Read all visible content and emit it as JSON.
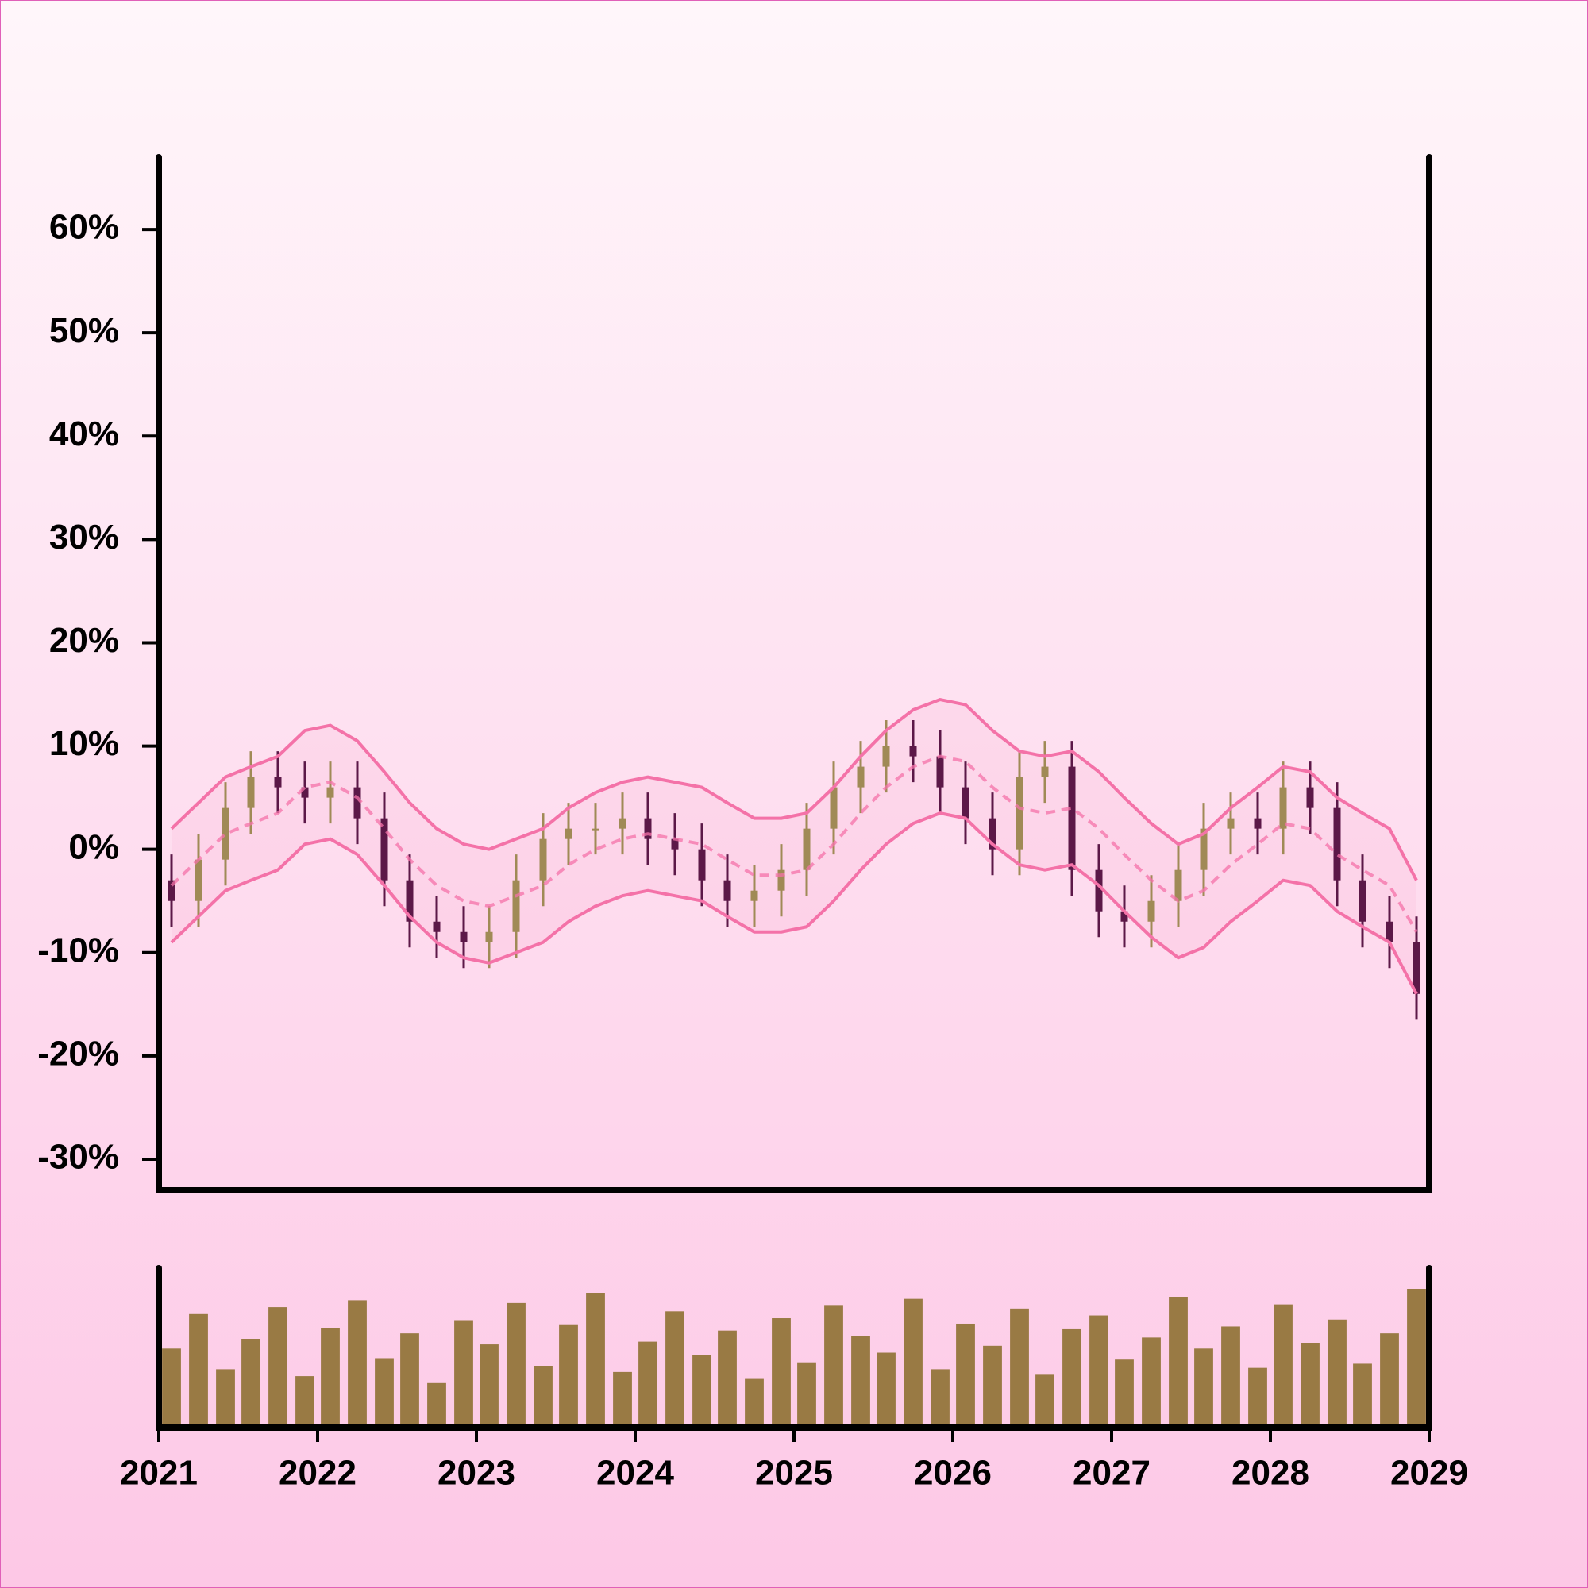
{
  "chart_data": {
    "type": "ohlc",
    "x": [
      2021.08,
      2021.25,
      2021.42,
      2021.58,
      2021.75,
      2021.92,
      2022.08,
      2022.25,
      2022.42,
      2022.58,
      2022.75,
      2022.92,
      2023.08,
      2023.25,
      2023.42,
      2023.58,
      2023.75,
      2023.92,
      2024.08,
      2024.25,
      2024.42,
      2024.58,
      2024.75,
      2024.92,
      2025.08,
      2025.25,
      2025.42,
      2025.58,
      2025.75,
      2025.92,
      2026.08,
      2026.25,
      2026.42,
      2026.58,
      2026.75,
      2026.92,
      2027.08,
      2027.25,
      2027.42,
      2027.58,
      2027.75,
      2027.92,
      2028.08,
      2028.25,
      2028.42,
      2028.58,
      2028.75,
      2028.92
    ],
    "open": [
      -3,
      -5,
      -1,
      4,
      7,
      6,
      5,
      6,
      3,
      -3,
      -7,
      -8,
      -9,
      -8,
      -3,
      1,
      2,
      2,
      3,
      1,
      0,
      -3,
      -5,
      -4,
      -2,
      2,
      6,
      8,
      10,
      9,
      6,
      3,
      0,
      7,
      8,
      -2,
      -6,
      -7,
      -5,
      -2,
      2,
      3,
      2,
      6,
      4,
      -3,
      -7,
      -9
    ],
    "high": [
      -0.5,
      1.5,
      6.5,
      9.5,
      9.5,
      8.5,
      8.5,
      8.5,
      5.5,
      -0.5,
      -4.5,
      -5.5,
      -5.5,
      -0.5,
      3.5,
      4.5,
      4.5,
      5.5,
      5.5,
      3.5,
      2.5,
      -0.5,
      -1.5,
      0.5,
      4.5,
      8.5,
      10.5,
      12.5,
      12.5,
      11.5,
      8.5,
      5.5,
      9.5,
      10.5,
      10.5,
      0.5,
      -3.5,
      -2.5,
      0.5,
      4.5,
      5.5,
      5.5,
      8.5,
      8.5,
      6.5,
      -0.5,
      -4.5,
      -6.5
    ],
    "low": [
      -7.5,
      -7.5,
      -3.5,
      1.5,
      3.5,
      2.5,
      2.5,
      0.5,
      -5.5,
      -9.5,
      -10.5,
      -11.5,
      -11.5,
      -10.5,
      -5.5,
      -1.5,
      -0.5,
      -0.5,
      -1.5,
      -2.5,
      -5.5,
      -7.5,
      -7.5,
      -6.5,
      -4.5,
      -0.5,
      3.5,
      5.5,
      6.5,
      3.5,
      0.5,
      -2.5,
      -2.5,
      4.5,
      -4.5,
      -8.5,
      -9.5,
      -9.5,
      -7.5,
      -4.5,
      -0.5,
      -0.5,
      -0.5,
      1.5,
      -5.5,
      -9.5,
      -11.5,
      -16.5
    ],
    "close": [
      -5,
      -1,
      4,
      7,
      6,
      5,
      6,
      3,
      -3,
      -7,
      -8,
      -9,
      -8,
      -3,
      1,
      2,
      2,
      3,
      1,
      0,
      -3,
      -5,
      -4,
      -2,
      2,
      6,
      8,
      10,
      9,
      6,
      3,
      0,
      7,
      8,
      -2,
      -6,
      -7,
      -5,
      -2,
      2,
      3,
      2,
      6,
      4,
      -3,
      -7,
      -9,
      -14
    ],
    "volume": [
      55,
      80,
      40,
      62,
      85,
      35,
      70,
      90,
      48,
      66,
      30,
      75,
      58,
      88,
      42,
      72,
      95,
      38,
      60,
      82,
      50,
      68,
      33,
      77,
      45,
      86,
      64,
      52,
      91,
      40,
      73,
      57,
      84,
      36,
      69,
      79,
      47,
      63,
      92,
      55,
      71,
      41,
      87,
      59,
      76,
      44,
      66,
      98
    ],
    "upper_band": [
      2,
      4.5,
      7,
      8,
      9,
      11.5,
      12,
      10.5,
      7.5,
      4.5,
      2,
      0.5,
      0,
      1,
      2,
      4,
      5.5,
      6.5,
      7,
      6.5,
      6,
      4.5,
      3,
      3,
      3.5,
      6,
      9,
      11.5,
      13.5,
      14.5,
      14,
      11.5,
      9.5,
      9,
      9.5,
      7.5,
      5,
      2.5,
      0.5,
      1.5,
      4,
      6,
      8,
      7.5,
      5,
      3.5,
      2,
      -3
    ],
    "middle_band": [
      -3.5,
      -1,
      1.5,
      2.5,
      3.5,
      6,
      6.5,
      5,
      2,
      -1,
      -3.5,
      -5,
      -5.5,
      -4.5,
      -3.5,
      -1.5,
      0,
      1,
      1.5,
      1,
      0.5,
      -1,
      -2.5,
      -2.5,
      -2,
      0.5,
      3.5,
      6,
      8,
      9,
      8.5,
      6,
      4,
      3.5,
      4,
      2,
      -0.5,
      -3,
      -5,
      -4,
      -1.5,
      0.5,
      2.5,
      2,
      -0.5,
      -2,
      -3.5,
      -8
    ],
    "lower_band": [
      -9,
      -6.5,
      -4,
      -3,
      -2,
      0.5,
      1,
      -0.5,
      -3.5,
      -6.5,
      -9,
      -10.5,
      -11,
      -10,
      -9,
      -7,
      -5.5,
      -4.5,
      -4,
      -4.5,
      -5,
      -6.5,
      -8,
      -8,
      -7.5,
      -5,
      -2,
      0.5,
      2.5,
      3.5,
      3,
      0.5,
      -1.5,
      -2,
      -1.5,
      -3.5,
      -6,
      -8.5,
      -10.5,
      -9.5,
      -7,
      -5,
      -3,
      -3.5,
      -6,
      -7.5,
      -9,
      -14
    ],
    "up_color": "#a08a56",
    "down_color": "#5c1848",
    "band_color": "#f472a8",
    "volume_color": "#997a44",
    "xlim": [
      2021,
      2029
    ],
    "xticks": [
      2021,
      2022,
      2023,
      2024,
      2025,
      2026,
      2027,
      2028,
      2029
    ],
    "ylim": [
      -33,
      67
    ],
    "yticks": [
      {
        "value": -30,
        "label": "-30%"
      },
      {
        "value": -20,
        "label": "-20%"
      },
      {
        "value": -10,
        "label": "-10%"
      },
      {
        "value": 0,
        "label": "0%"
      },
      {
        "value": 10,
        "label": "10%"
      },
      {
        "value": 20,
        "label": "20%"
      },
      {
        "value": 30,
        "label": "30%"
      },
      {
        "value": 40,
        "label": "40%"
      },
      {
        "value": 50,
        "label": "50%"
      },
      {
        "value": 60,
        "label": "60%"
      }
    ],
    "volume_lim": [
      0,
      100
    ]
  }
}
